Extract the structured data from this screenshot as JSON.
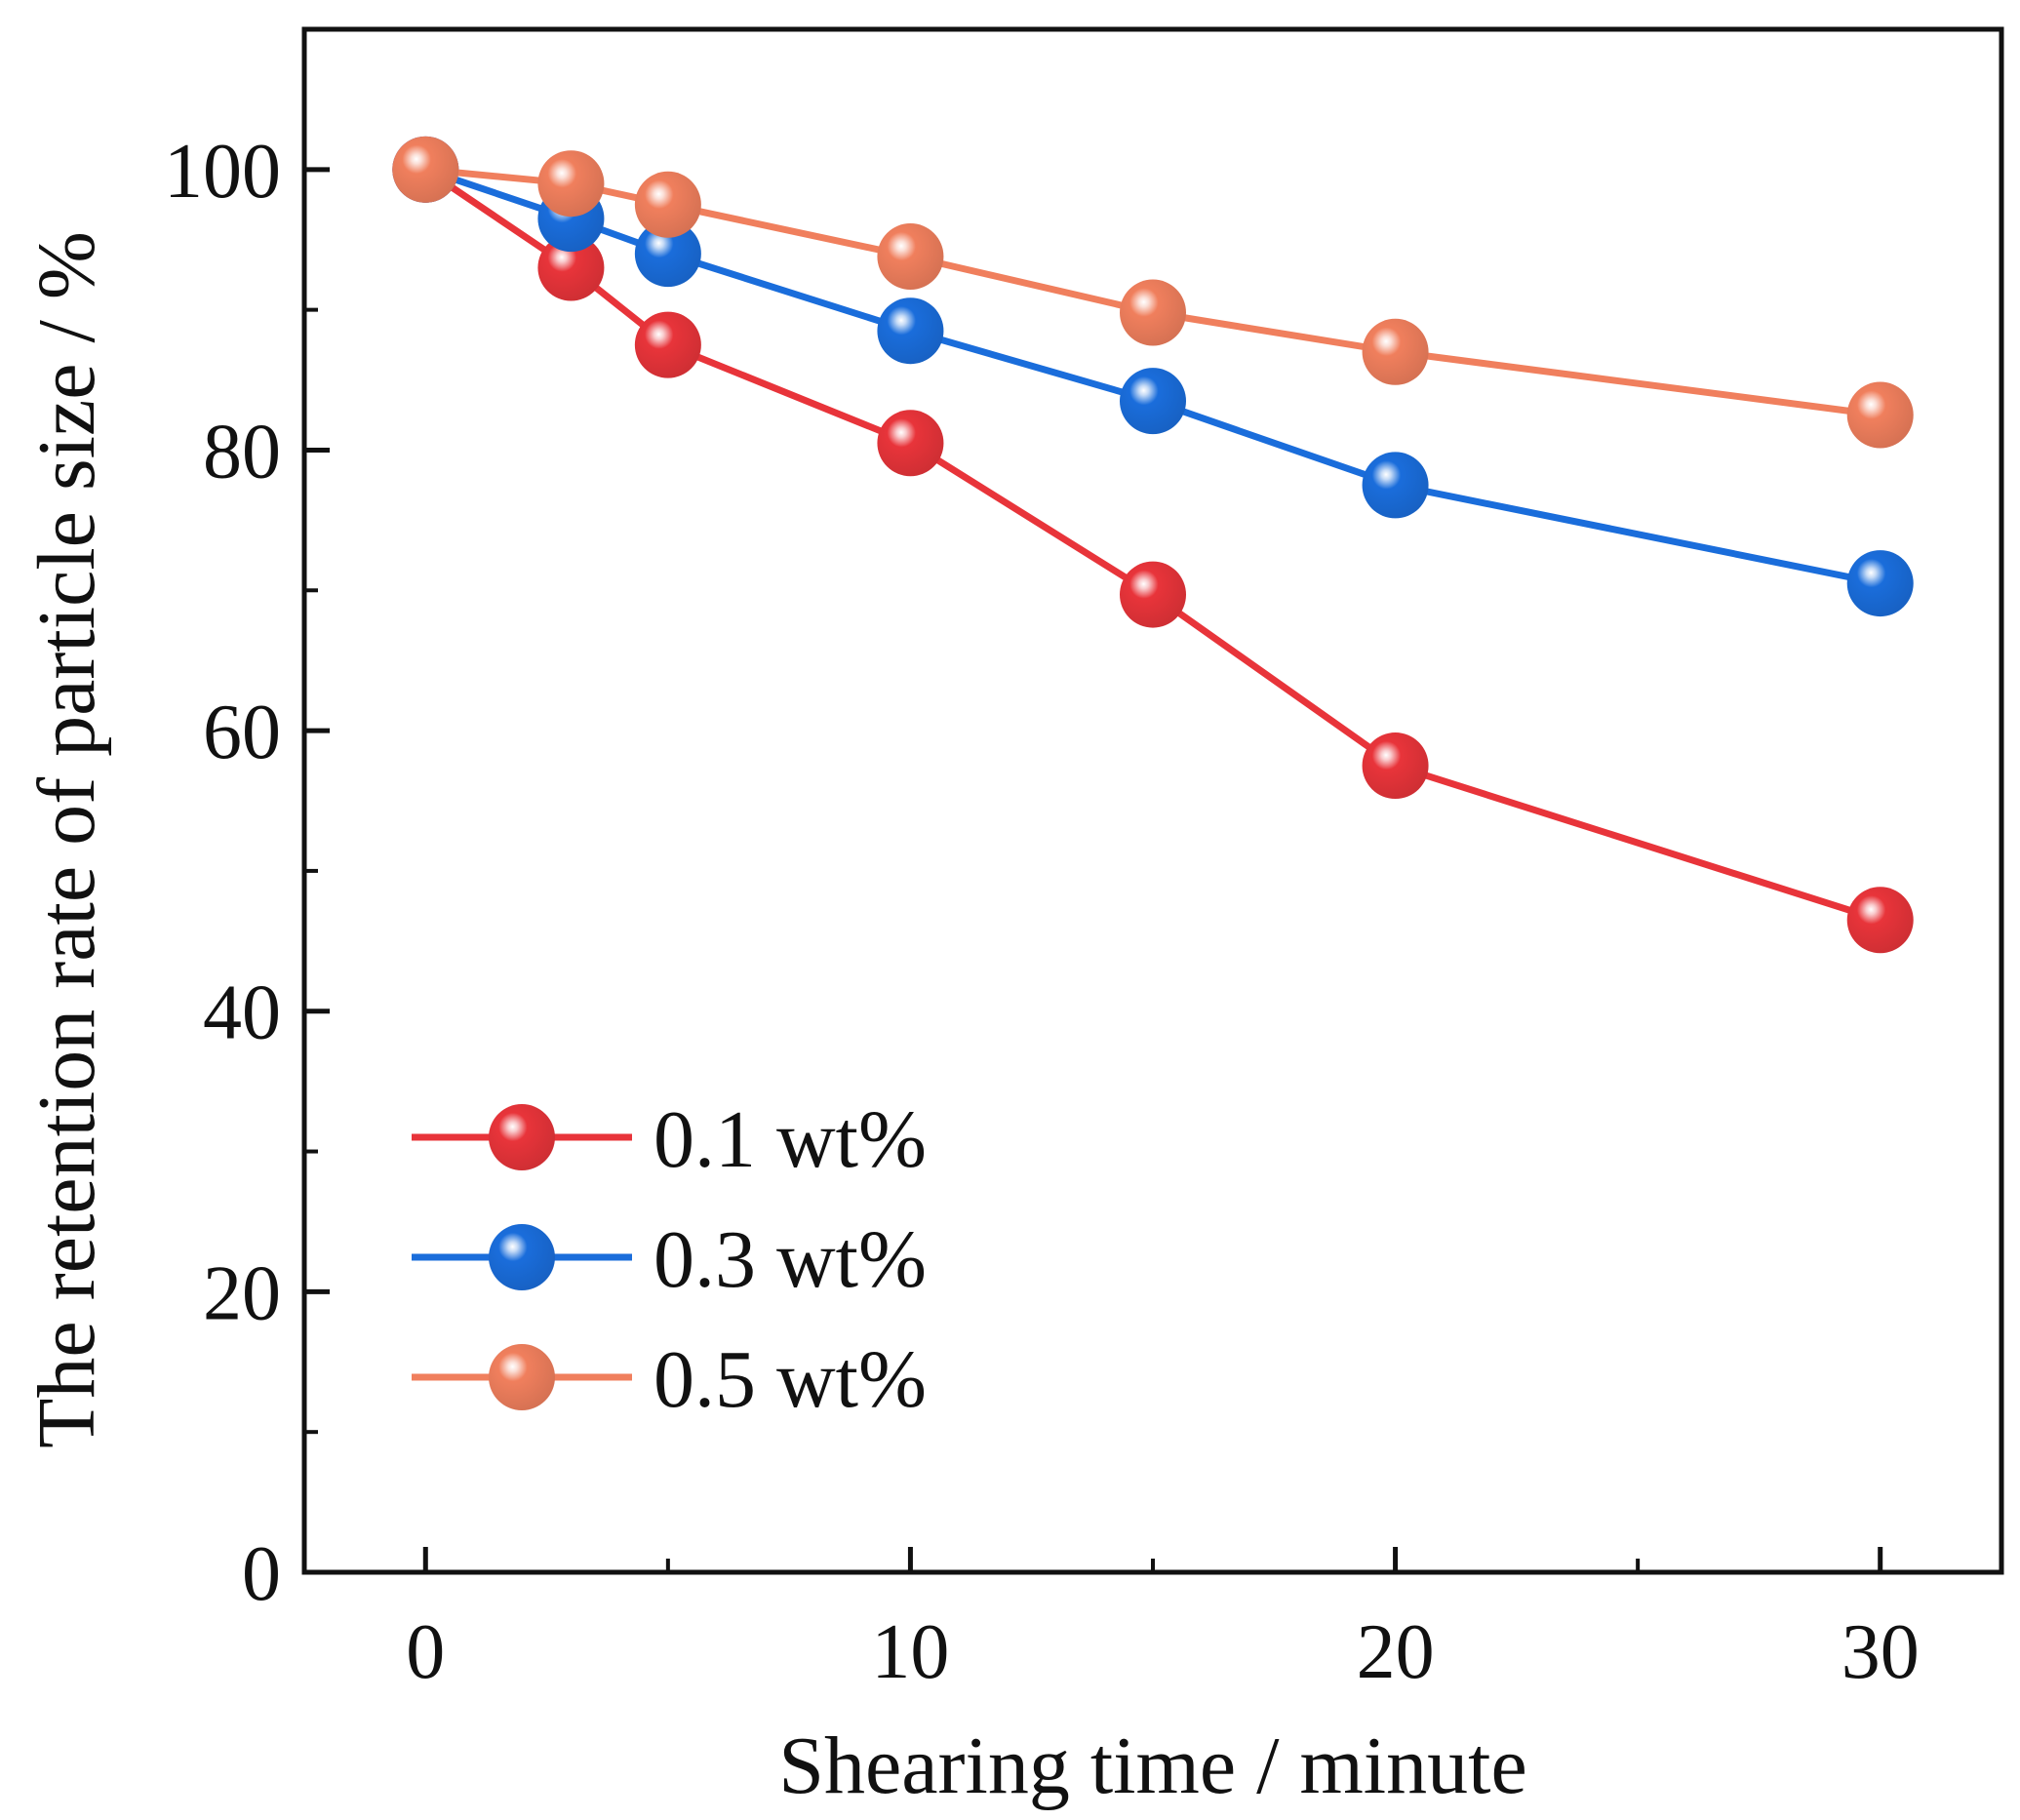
{
  "chart_data": {
    "type": "line",
    "title": "",
    "xlabel": "Shearing time / minute",
    "ylabel": "The retention rate of particle size / %",
    "xlim": [
      -2.5,
      32.5
    ],
    "ylim": [
      0,
      110
    ],
    "x_ticks": [
      0,
      10,
      20,
      30
    ],
    "x_tick_labels": [
      "0",
      "10",
      "20",
      "30"
    ],
    "x_minor_ticks": [
      5,
      15,
      25
    ],
    "y_ticks": [
      0,
      20,
      40,
      60,
      80,
      100
    ],
    "y_tick_labels": [
      "0",
      "20",
      "40",
      "60",
      "80",
      "100"
    ],
    "y_minor_ticks": [
      10,
      30,
      50,
      70,
      90
    ],
    "grid": false,
    "legend_position": "bottom-left",
    "x": [
      0,
      3,
      5,
      10,
      15,
      20,
      30
    ],
    "series": [
      {
        "name": "0.1 wt%",
        "color": "#e8343a",
        "values": [
          100,
          93,
          87.5,
          80.5,
          69.7,
          57.5,
          46.5
        ]
      },
      {
        "name": "0.3 wt%",
        "color": "#1a6ddb",
        "values": [
          100,
          96.5,
          94,
          88.5,
          83.5,
          77.5,
          70.5
        ]
      },
      {
        "name": "0.5 wt%",
        "color": "#f07f5d",
        "values": [
          100,
          99,
          97.5,
          93.8,
          89.8,
          87,
          82.5
        ]
      }
    ]
  }
}
